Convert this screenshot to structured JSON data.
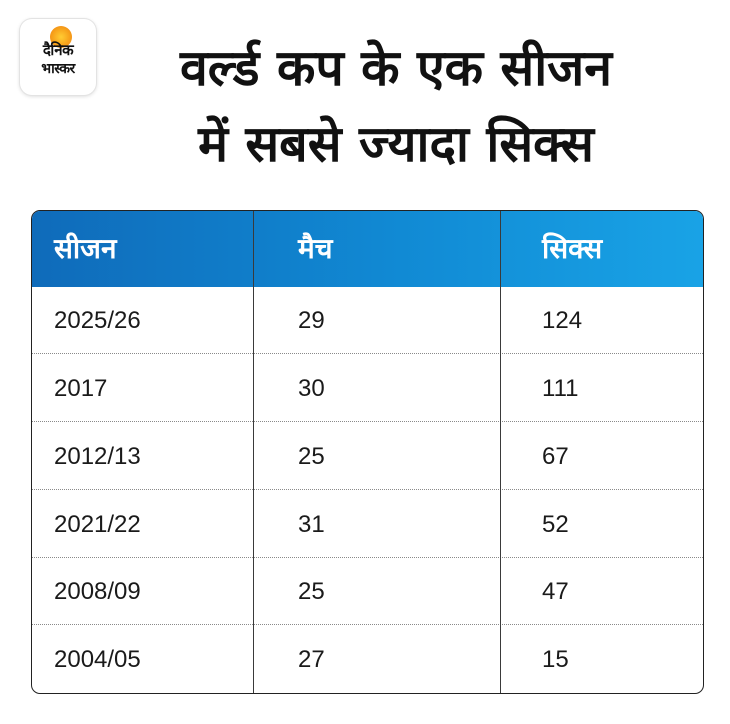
{
  "brand": {
    "logo_line1": "दैनिक",
    "logo_line2": "भास्कर",
    "sun_color": "#f7a21b"
  },
  "title": {
    "line1": "वर्ल्ड कप के एक सीजन",
    "line2": "में सबसे ज्यादा सिक्स"
  },
  "table": {
    "header_color": "#118ad4",
    "columns": [
      "सीजन",
      "मैच",
      "सिक्स"
    ],
    "rows": [
      [
        "2025/26",
        "29",
        "124"
      ],
      [
        "2017",
        "30",
        "111"
      ],
      [
        "2012/13",
        "25",
        "67"
      ],
      [
        "2021/22",
        "31",
        "52"
      ],
      [
        "2008/09",
        "25",
        "47"
      ],
      [
        "2004/05",
        "27",
        "15"
      ]
    ]
  }
}
